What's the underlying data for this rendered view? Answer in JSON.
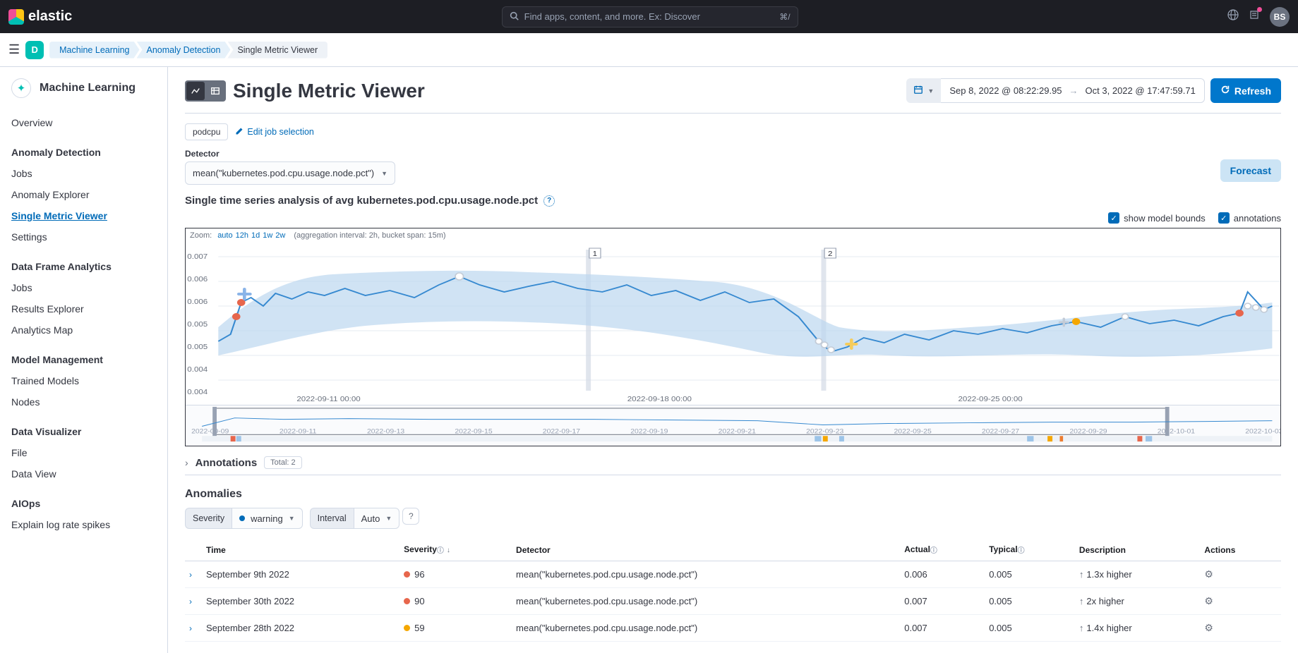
{
  "topbar": {
    "brand": "elastic",
    "search_placeholder": "Find apps, content, and more. Ex: Discover",
    "search_shortcut": "⌘/",
    "avatar_initials": "BS"
  },
  "breadcrumbs": {
    "space_letter": "D",
    "items": [
      "Machine Learning",
      "Anomaly Detection",
      "Single Metric Viewer"
    ]
  },
  "sidebar": {
    "title": "Machine Learning",
    "overview": "Overview",
    "groups": [
      {
        "label": "Anomaly Detection",
        "items": [
          "Jobs",
          "Anomaly Explorer",
          "Single Metric Viewer",
          "Settings"
        ],
        "active": "Single Metric Viewer"
      },
      {
        "label": "Data Frame Analytics",
        "items": [
          "Jobs",
          "Results Explorer",
          "Analytics Map"
        ]
      },
      {
        "label": "Model Management",
        "items": [
          "Trained Models",
          "Nodes"
        ]
      },
      {
        "label": "Data Visualizer",
        "items": [
          "File",
          "Data View"
        ]
      },
      {
        "label": "AIOps",
        "items": [
          "Explain log rate spikes"
        ]
      }
    ]
  },
  "page": {
    "title": "Single Metric Viewer",
    "date_from": "Sep 8, 2022 @ 08:22:29.95",
    "date_to": "Oct 3, 2022 @ 17:47:59.71",
    "refresh_label": "Refresh",
    "job_chip": "podcpu",
    "edit_job_label": "Edit job selection",
    "detector_label": "Detector",
    "detector_value": "mean(\"kubernetes.pod.cpu.usage.node.pct\")",
    "forecast_label": "Forecast",
    "series_title": "Single time series analysis of avg kubernetes.pod.cpu.usage.node.pct",
    "show_model_bounds": "show model bounds",
    "annotations_label": "annotations",
    "zoom_label": "Zoom:",
    "zoom_options": [
      "auto",
      "12h",
      "1d",
      "1w",
      "2w"
    ],
    "agg_info": "(aggregation interval: 2h, bucket span: 15m)"
  },
  "chart": {
    "type": "line",
    "y_ticks": [
      "0.007",
      "0.006",
      "0.006",
      "0.005",
      "0.005",
      "0.004",
      "0.004"
    ],
    "x_ticks": [
      "2022-09-11 00:00",
      "2022-09-18 00:00",
      "2022-09-25 00:00"
    ],
    "line_color": "#3689d0",
    "bounds_color": "#bcd7f0",
    "bg_color": "#ffffff",
    "grid_color": "#e6ebf2",
    "anomaly_red": "#e7664c",
    "anomaly_yellow": "#f5a700",
    "anomaly_blue": "#54b399",
    "marker_gray": "#c3cbd6",
    "annotation_flags": [
      "1",
      "2"
    ],
    "mini_x_ticks": [
      "2022-09-09",
      "2022-09-11",
      "2022-09-13",
      "2022-09-15",
      "2022-09-17",
      "2022-09-19",
      "2022-09-21",
      "2022-09-23",
      "2022-09-25",
      "2022-09-27",
      "2022-09-29",
      "2022-10-01",
      "2022-10-03"
    ]
  },
  "annotations": {
    "header": "Annotations",
    "total_label": "Total: 2"
  },
  "anomalies": {
    "title": "Anomalies",
    "severity_label": "Severity",
    "severity_value": "warning",
    "interval_label": "Interval",
    "interval_value": "Auto",
    "columns": [
      "Time",
      "Severity",
      "Detector",
      "Actual",
      "Typical",
      "Description",
      "Actions"
    ],
    "rows": [
      {
        "time": "September 9th 2022",
        "severity": 96,
        "sev_class": "red",
        "detector": "mean(\"kubernetes.pod.cpu.usage.node.pct\")",
        "actual": "0.006",
        "typical": "0.005",
        "desc": "1.3x higher"
      },
      {
        "time": "September 30th 2022",
        "severity": 90,
        "sev_class": "red",
        "detector": "mean(\"kubernetes.pod.cpu.usage.node.pct\")",
        "actual": "0.007",
        "typical": "0.005",
        "desc": "2x higher"
      },
      {
        "time": "September 28th 2022",
        "severity": 59,
        "sev_class": "yellow",
        "detector": "mean(\"kubernetes.pod.cpu.usage.node.pct\")",
        "actual": "0.007",
        "typical": "0.005",
        "desc": "1.4x higher"
      }
    ]
  }
}
